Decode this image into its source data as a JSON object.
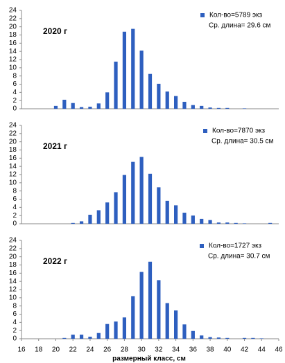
{
  "chart_data": [
    {
      "type": "bar",
      "title": "2020 г",
      "annotation": "Ср. длина= 29.6 см",
      "x": [
        20,
        21,
        22,
        23,
        24,
        25,
        26,
        27,
        28,
        29,
        30,
        31,
        32,
        33,
        34,
        35,
        36,
        37,
        38,
        39,
        40,
        42
      ],
      "series": [
        {
          "name": "Кол-во=5789 экз",
          "color": "#2e5fbf",
          "values": [
            0.7,
            2.2,
            1.4,
            0.4,
            0.5,
            1.3,
            4.0,
            11.5,
            18.8,
            19.5,
            14.2,
            8.5,
            6.1,
            4.2,
            3.1,
            1.7,
            0.9,
            0.7,
            0.3,
            0.2,
            0.2,
            0.1
          ]
        }
      ],
      "xlim": [
        16,
        46
      ],
      "ylim": [
        0,
        24
      ],
      "yticks": [
        0,
        2,
        4,
        6,
        8,
        10,
        12,
        14,
        16,
        18,
        20,
        22,
        24
      ]
    },
    {
      "type": "bar",
      "title": "2021 г",
      "annotation": "Ср. длина= 30.5 см",
      "x": [
        22,
        23,
        24,
        25,
        26,
        27,
        28,
        29,
        30,
        31,
        32,
        33,
        34,
        35,
        36,
        37,
        38,
        39,
        40,
        41,
        42,
        45
      ],
      "series": [
        {
          "name": "Кол-во=7870 экз",
          "color": "#2e5fbf",
          "values": [
            0.2,
            0.6,
            2.2,
            3.3,
            5.2,
            7.7,
            11.9,
            15.1,
            16.3,
            12.2,
            8.9,
            5.6,
            4.5,
            2.7,
            2.0,
            1.2,
            0.9,
            0.3,
            0.3,
            0.2,
            0.1,
            0.2
          ]
        }
      ],
      "xlim": [
        16,
        46
      ],
      "ylim": [
        0,
        24
      ],
      "yticks": [
        0,
        2,
        4,
        6,
        8,
        10,
        12,
        14,
        16,
        18,
        20,
        22,
        24
      ]
    },
    {
      "type": "bar",
      "title": "2022 г",
      "annotation": "Ср. длина= 30.7 см",
      "x_label": "размерный класс, см",
      "x": [
        21,
        22,
        23,
        24,
        25,
        26,
        27,
        28,
        29,
        30,
        31,
        32,
        33,
        34,
        35,
        36,
        37,
        38,
        39,
        40,
        42,
        43,
        44
      ],
      "series": [
        {
          "name": "Кол-во=1727 экз",
          "color": "#2e5fbf",
          "values": [
            0.2,
            1.0,
            1.0,
            0.5,
            1.4,
            3.6,
            4.2,
            5.2,
            10.4,
            16.3,
            18.8,
            14.3,
            8.7,
            6.9,
            3.5,
            1.9,
            0.8,
            0.4,
            0.3,
            0.2,
            0.2,
            0.2,
            0.1
          ]
        }
      ],
      "xlim": [
        16,
        46
      ],
      "ylim": [
        0,
        24
      ],
      "yticks": [
        0,
        2,
        4,
        6,
        8,
        10,
        12,
        14,
        16,
        18,
        20,
        22,
        24
      ],
      "xticks": [
        16,
        18,
        20,
        22,
        24,
        26,
        28,
        30,
        32,
        34,
        36,
        38,
        40,
        42,
        44,
        46
      ]
    }
  ]
}
